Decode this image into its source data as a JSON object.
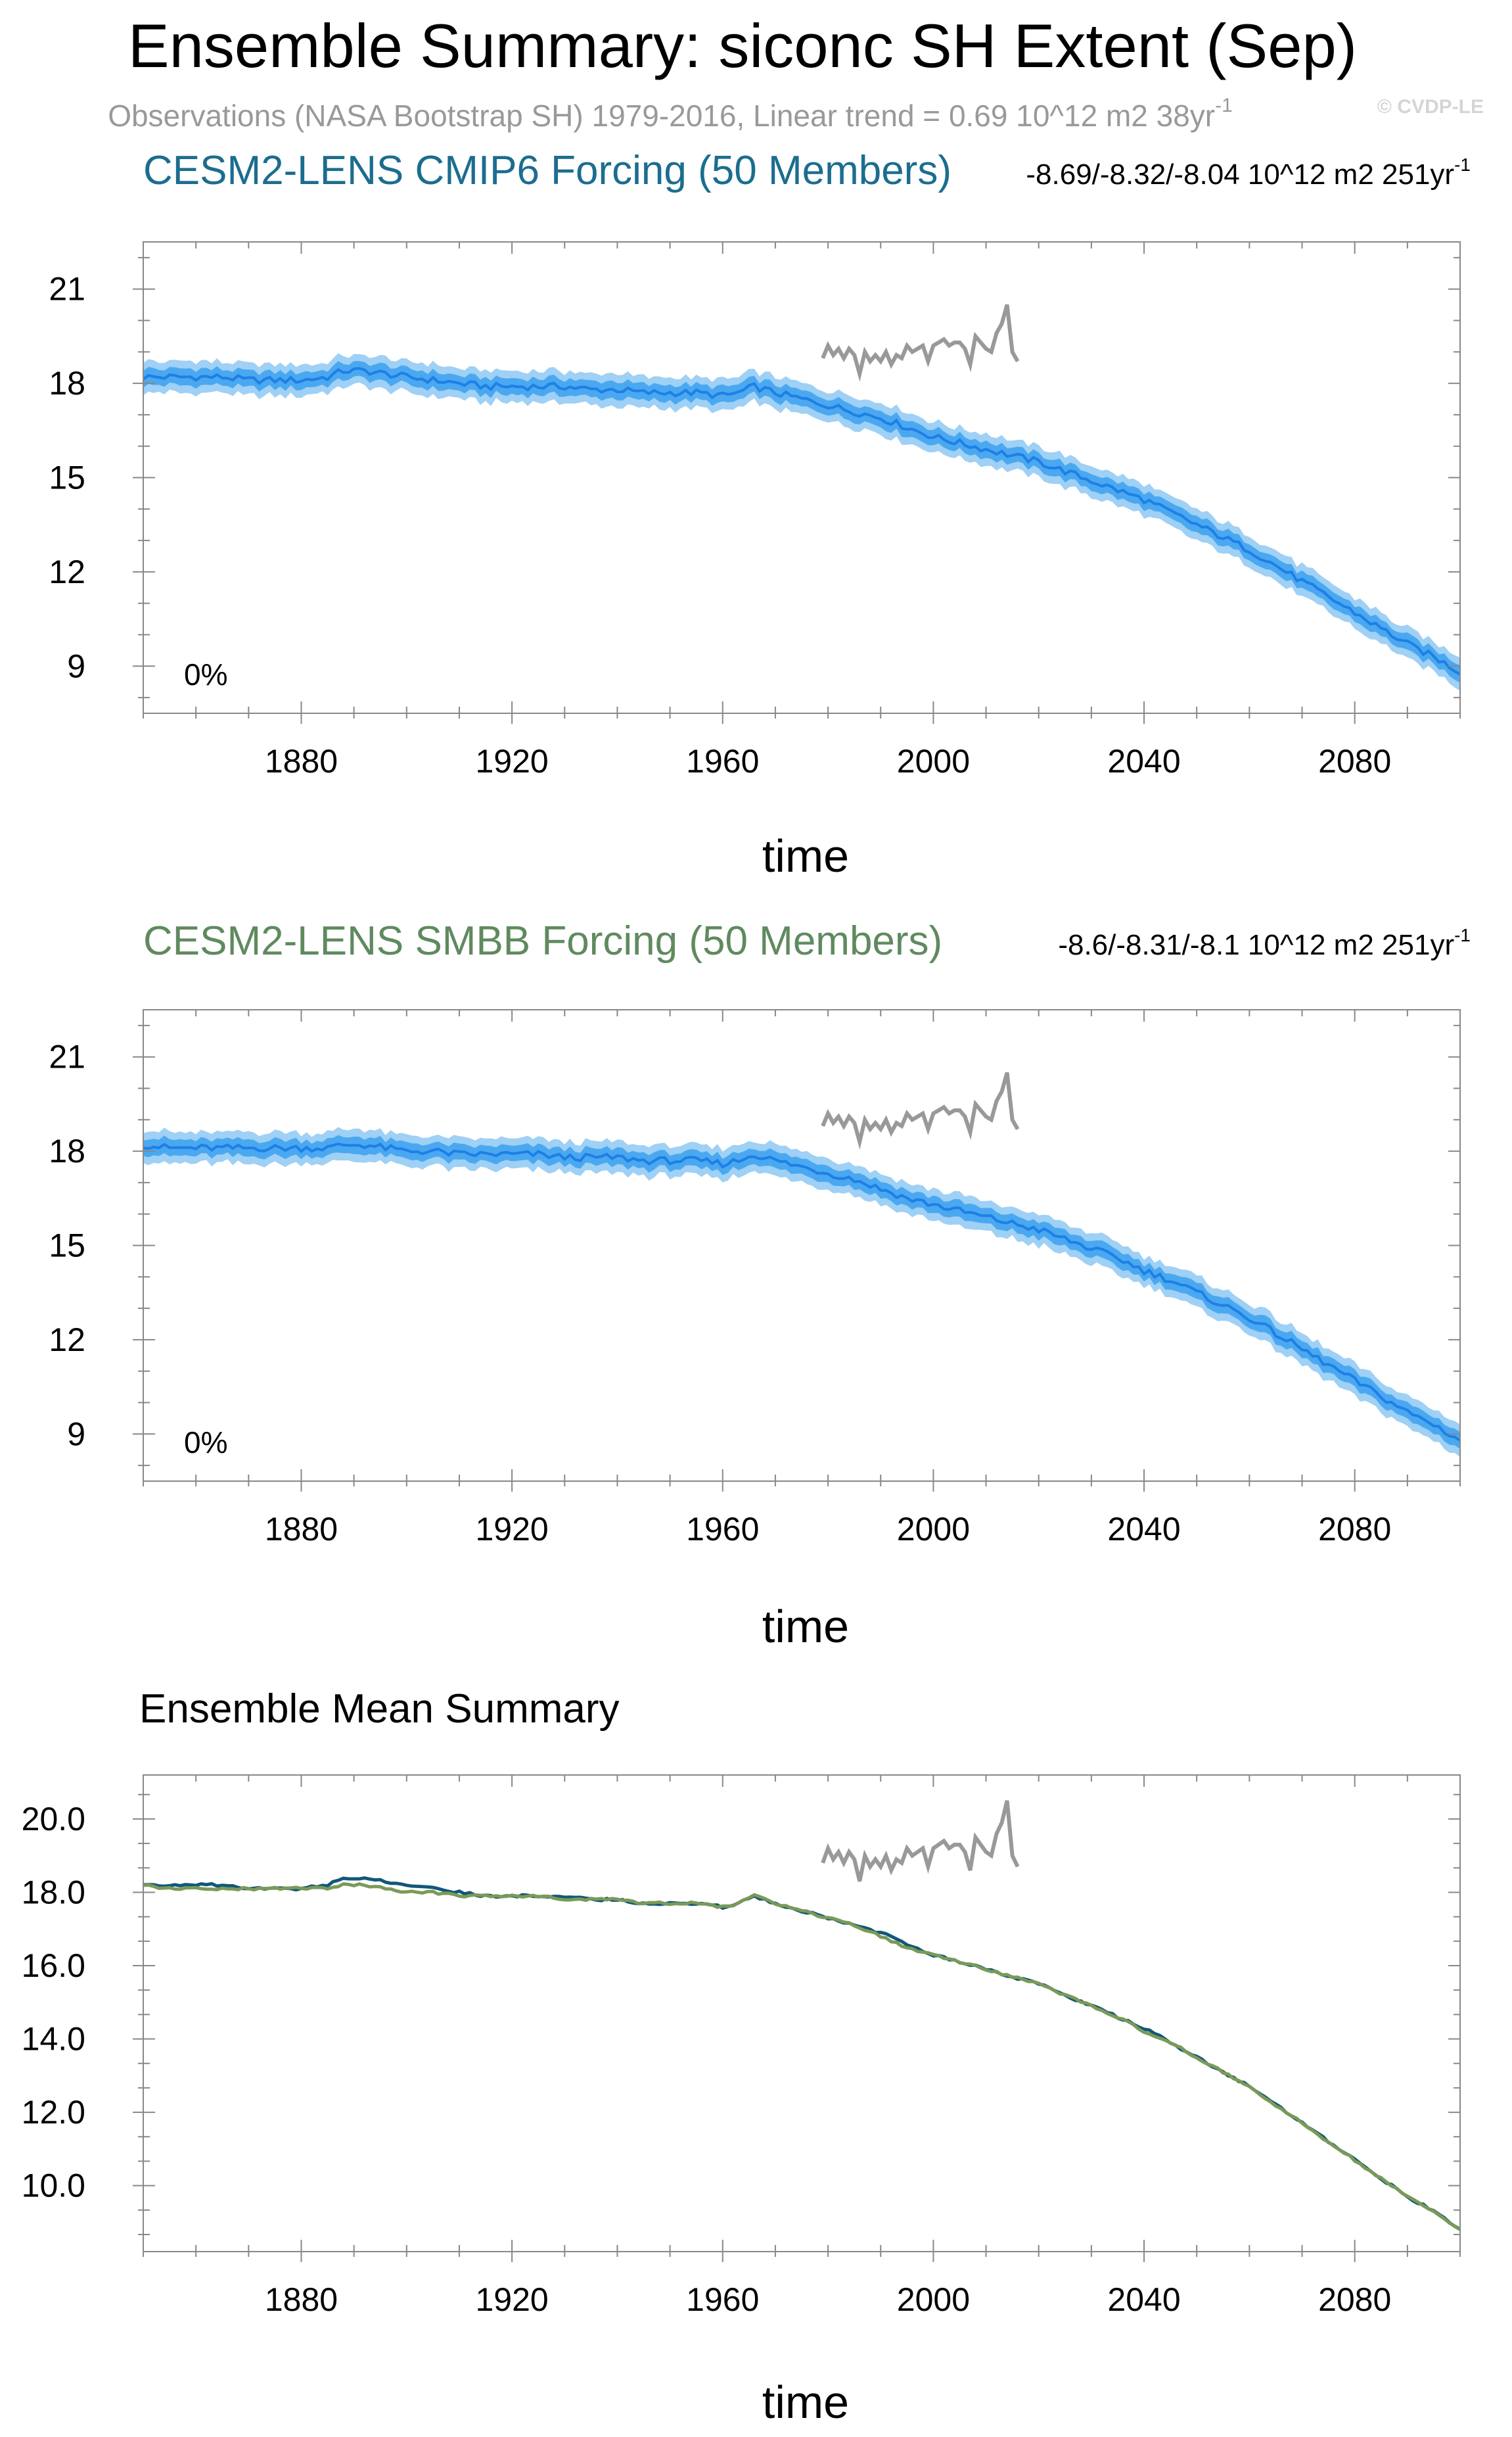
{
  "page": {
    "title": "Ensemble Summary: siconc SH Extent (Sep)",
    "subtitle": "Observations (NASA Bootstrap SH) 1979-2016, Linear trend = 0.69 10^12 m2 38yr",
    "subtitle_sup": "-1",
    "watermark": "© CVDP-LE"
  },
  "colors": {
    "title": "#000000",
    "subtitle": "#999999",
    "cmip6_title": "#1b6d8f",
    "smbb_title": "#5f8a5f",
    "spread_outer": "#9fd0f5",
    "spread_inner": "#4aa8f0",
    "ens_mean": "#1e7fe6",
    "obs": "#999999",
    "mean_cmip6": "#11577a",
    "mean_smbb": "#7a9a58",
    "axis": "#000000",
    "grid_tick": "#888888"
  },
  "chart_data": [
    {
      "type": "area",
      "id": "cmip6",
      "title": "CESM2-LENS CMIP6 Forcing (50 Members)",
      "trend_label": "-8.69/-8.32/-8.04 10^12 m2 251yr",
      "trend_sup": "-1",
      "percent_label": "0%",
      "xlabel": "time",
      "ylabel": "",
      "xlim": [
        1850,
        2100
      ],
      "ylim": [
        7.5,
        22.5
      ],
      "xticks": [
        1880,
        1920,
        1960,
        2000,
        2040,
        2080
      ],
      "xtick_labels": [
        "1880",
        "1920",
        "1960",
        "2000",
        "2040",
        "2080"
      ],
      "yticks": [
        9,
        12,
        15,
        18,
        21
      ],
      "ytick_labels": [
        "9",
        "12",
        "15",
        "18",
        "21"
      ],
      "series": [
        {
          "name": "Ensemble mean",
          "x": [
            1850,
            1855,
            1860,
            1865,
            1870,
            1875,
            1880,
            1885,
            1888,
            1892,
            1896,
            1900,
            1905,
            1910,
            1915,
            1920,
            1925,
            1930,
            1935,
            1940,
            1945,
            1950,
            1955,
            1960,
            1963,
            1966,
            1970,
            1975,
            1980,
            1985,
            1990,
            1995,
            2000,
            2005,
            2010,
            2015,
            2020,
            2025,
            2030,
            2035,
            2040,
            2045,
            2050,
            2055,
            2060,
            2065,
            2070,
            2075,
            2080,
            2085,
            2090,
            2095,
            2100
          ],
          "values": [
            18.2,
            18.2,
            18.2,
            18.2,
            18.1,
            18.1,
            18.1,
            18.2,
            18.4,
            18.4,
            18.3,
            18.2,
            18.1,
            18.0,
            17.9,
            17.9,
            17.9,
            17.9,
            17.8,
            17.8,
            17.7,
            17.7,
            17.7,
            17.6,
            17.7,
            17.9,
            17.7,
            17.5,
            17.3,
            17.1,
            16.9,
            16.6,
            16.3,
            16.1,
            15.9,
            15.7,
            15.5,
            15.2,
            14.9,
            14.6,
            14.3,
            13.9,
            13.5,
            13.1,
            12.7,
            12.2,
            11.7,
            11.2,
            10.7,
            10.2,
            9.7,
            9.3,
            8.8
          ]
        },
        {
          "name": "Observations (NASA Bootstrap SH)",
          "x": [
            1979,
            1980,
            1981,
            1982,
            1983,
            1984,
            1985,
            1986,
            1987,
            1988,
            1989,
            1990,
            1991,
            1992,
            1993,
            1994,
            1995,
            1996,
            1997,
            1998,
            1999,
            2000,
            2001,
            2002,
            2003,
            2004,
            2005,
            2006,
            2007,
            2008,
            2009,
            2010,
            2011,
            2012,
            2013,
            2014,
            2015,
            2016
          ],
          "values": [
            18.8,
            19.2,
            18.9,
            19.1,
            18.8,
            19.1,
            18.9,
            18.3,
            19.0,
            18.7,
            18.9,
            18.7,
            19.0,
            18.6,
            18.9,
            18.8,
            19.2,
            19.0,
            19.1,
            19.2,
            18.7,
            19.2,
            19.3,
            19.4,
            19.2,
            19.3,
            19.3,
            19.1,
            18.6,
            19.5,
            19.3,
            19.1,
            19.0,
            19.6,
            19.9,
            20.5,
            19.0,
            18.7
          ]
        }
      ]
    },
    {
      "type": "area",
      "id": "smbb",
      "title": "CESM2-LENS SMBB Forcing (50 Members)",
      "trend_label": "-8.6/-8.31/-8.1 10^12 m2 251yr",
      "trend_sup": "-1",
      "percent_label": "0%",
      "xlabel": "time",
      "ylabel": "",
      "xlim": [
        1850,
        2100
      ],
      "ylim": [
        7.5,
        22.5
      ],
      "xticks": [
        1880,
        1920,
        1960,
        2000,
        2040,
        2080
      ],
      "xtick_labels": [
        "1880",
        "1920",
        "1960",
        "2000",
        "2040",
        "2080"
      ],
      "yticks": [
        9,
        12,
        15,
        18,
        21
      ],
      "ytick_labels": [
        "9",
        "12",
        "15",
        "18",
        "21"
      ],
      "series": [
        {
          "name": "Ensemble mean",
          "x": [
            1850,
            1855,
            1860,
            1865,
            1870,
            1875,
            1880,
            1885,
            1888,
            1892,
            1896,
            1900,
            1905,
            1910,
            1915,
            1920,
            1925,
            1930,
            1935,
            1940,
            1945,
            1950,
            1955,
            1960,
            1963,
            1966,
            1970,
            1975,
            1980,
            1985,
            1990,
            1995,
            2000,
            2005,
            2010,
            2015,
            2020,
            2025,
            2030,
            2035,
            2040,
            2045,
            2050,
            2055,
            2060,
            2065,
            2070,
            2075,
            2080,
            2085,
            2090,
            2095,
            2100
          ],
          "values": [
            18.2,
            18.1,
            18.1,
            18.1,
            18.1,
            18.1,
            18.1,
            18.1,
            18.2,
            18.2,
            18.1,
            18.0,
            18.0,
            17.9,
            17.9,
            17.9,
            17.9,
            17.8,
            17.8,
            17.8,
            17.7,
            17.7,
            17.7,
            17.6,
            17.7,
            17.9,
            17.7,
            17.5,
            17.3,
            17.1,
            16.8,
            16.5,
            16.3,
            16.1,
            15.9,
            15.7,
            15.5,
            15.2,
            14.9,
            14.6,
            14.2,
            13.9,
            13.5,
            13.1,
            12.7,
            12.2,
            11.7,
            11.2,
            10.7,
            10.2,
            9.7,
            9.3,
            8.8
          ]
        },
        {
          "name": "Observations (NASA Bootstrap SH)",
          "x": [
            1979,
            1980,
            1981,
            1982,
            1983,
            1984,
            1985,
            1986,
            1987,
            1988,
            1989,
            1990,
            1991,
            1992,
            1993,
            1994,
            1995,
            1996,
            1997,
            1998,
            1999,
            2000,
            2001,
            2002,
            2003,
            2004,
            2005,
            2006,
            2007,
            2008,
            2009,
            2010,
            2011,
            2012,
            2013,
            2014,
            2015,
            2016
          ],
          "values": [
            18.8,
            19.2,
            18.9,
            19.1,
            18.8,
            19.1,
            18.9,
            18.3,
            19.0,
            18.7,
            18.9,
            18.7,
            19.0,
            18.6,
            18.9,
            18.8,
            19.2,
            19.0,
            19.1,
            19.2,
            18.7,
            19.2,
            19.3,
            19.4,
            19.2,
            19.3,
            19.3,
            19.1,
            18.6,
            19.5,
            19.3,
            19.1,
            19.0,
            19.6,
            19.9,
            20.5,
            19.0,
            18.7
          ]
        }
      ]
    },
    {
      "type": "line",
      "id": "mean",
      "title": "Ensemble Mean Summary",
      "xlabel": "time",
      "ylabel": "",
      "xlim": [
        1850,
        2100
      ],
      "ylim": [
        8.2,
        21.2
      ],
      "xticks": [
        1880,
        1920,
        1960,
        2000,
        2040,
        2080
      ],
      "xtick_labels": [
        "1880",
        "1920",
        "1960",
        "2000",
        "2040",
        "2080"
      ],
      "yticks": [
        10,
        12,
        14,
        16,
        18,
        20
      ],
      "ytick_labels": [
        "10.0",
        "12.0",
        "14.0",
        "16.0",
        "18.0",
        "20.0"
      ],
      "series": [
        {
          "name": "CESM2-LENS CMIP6 Forcing",
          "x": [
            1850,
            1855,
            1860,
            1865,
            1870,
            1875,
            1880,
            1885,
            1888,
            1892,
            1896,
            1900,
            1905,
            1910,
            1915,
            1920,
            1925,
            1930,
            1935,
            1940,
            1945,
            1950,
            1955,
            1960,
            1963,
            1966,
            1970,
            1975,
            1980,
            1985,
            1990,
            1995,
            2000,
            2005,
            2010,
            2015,
            2020,
            2025,
            2030,
            2035,
            2040,
            2045,
            2050,
            2055,
            2060,
            2065,
            2070,
            2075,
            2080,
            2085,
            2090,
            2095,
            2100
          ],
          "values": [
            18.2,
            18.2,
            18.2,
            18.2,
            18.1,
            18.1,
            18.1,
            18.2,
            18.4,
            18.4,
            18.3,
            18.2,
            18.1,
            18.0,
            17.9,
            17.9,
            17.9,
            17.9,
            17.8,
            17.8,
            17.7,
            17.7,
            17.7,
            17.6,
            17.7,
            17.9,
            17.7,
            17.5,
            17.3,
            17.1,
            16.9,
            16.6,
            16.3,
            16.1,
            15.9,
            15.7,
            15.5,
            15.2,
            14.9,
            14.6,
            14.3,
            13.9,
            13.5,
            13.1,
            12.7,
            12.2,
            11.7,
            11.2,
            10.7,
            10.2,
            9.7,
            9.3,
            8.8
          ]
        },
        {
          "name": "CESM2-LENS SMBB Forcing",
          "x": [
            1850,
            1855,
            1860,
            1865,
            1870,
            1875,
            1880,
            1885,
            1888,
            1892,
            1896,
            1900,
            1905,
            1910,
            1915,
            1920,
            1925,
            1930,
            1935,
            1940,
            1945,
            1950,
            1955,
            1960,
            1963,
            1966,
            1970,
            1975,
            1980,
            1985,
            1990,
            1995,
            2000,
            2005,
            2010,
            2015,
            2020,
            2025,
            2030,
            2035,
            2040,
            2045,
            2050,
            2055,
            2060,
            2065,
            2070,
            2075,
            2080,
            2085,
            2090,
            2095,
            2100
          ],
          "values": [
            18.2,
            18.1,
            18.1,
            18.1,
            18.1,
            18.1,
            18.1,
            18.1,
            18.2,
            18.2,
            18.1,
            18.0,
            18.0,
            17.9,
            17.9,
            17.9,
            17.9,
            17.8,
            17.8,
            17.8,
            17.7,
            17.7,
            17.7,
            17.6,
            17.7,
            17.9,
            17.7,
            17.5,
            17.3,
            17.1,
            16.8,
            16.5,
            16.3,
            16.1,
            15.9,
            15.7,
            15.5,
            15.2,
            14.9,
            14.6,
            14.2,
            13.9,
            13.5,
            13.1,
            12.7,
            12.2,
            11.7,
            11.2,
            10.7,
            10.2,
            9.7,
            9.3,
            8.8
          ]
        },
        {
          "name": "Observations (NASA Bootstrap SH)",
          "x": [
            1979,
            1980,
            1981,
            1982,
            1983,
            1984,
            1985,
            1986,
            1987,
            1988,
            1989,
            1990,
            1991,
            1992,
            1993,
            1994,
            1995,
            1996,
            1997,
            1998,
            1999,
            2000,
            2001,
            2002,
            2003,
            2004,
            2005,
            2006,
            2007,
            2008,
            2009,
            2010,
            2011,
            2012,
            2013,
            2014,
            2015,
            2016
          ],
          "values": [
            18.8,
            19.2,
            18.9,
            19.1,
            18.8,
            19.1,
            18.9,
            18.3,
            19.0,
            18.7,
            18.9,
            18.7,
            19.0,
            18.6,
            18.9,
            18.8,
            19.2,
            19.0,
            19.1,
            19.2,
            18.7,
            19.2,
            19.3,
            19.4,
            19.2,
            19.3,
            19.3,
            19.1,
            18.6,
            19.5,
            19.3,
            19.1,
            19.0,
            19.6,
            19.9,
            20.5,
            19.0,
            18.7
          ]
        }
      ]
    }
  ]
}
